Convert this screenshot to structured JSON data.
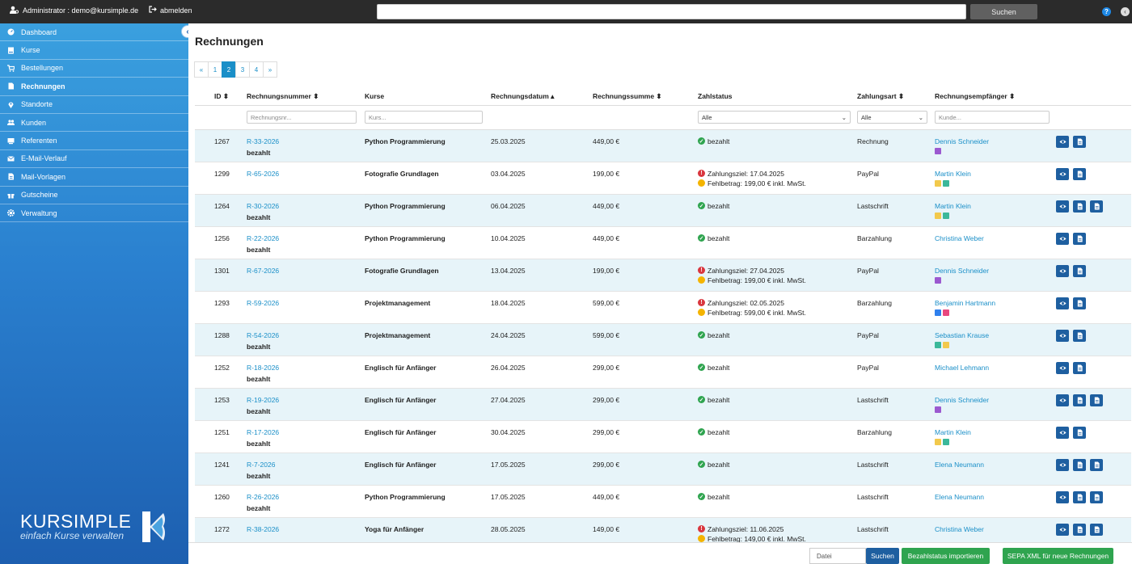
{
  "topbar": {
    "user": "Administrator : demo@kursimple.de",
    "logout": "abmelden",
    "search_button": "Suchen",
    "help": "?",
    "collapse": "‹"
  },
  "sidebar": {
    "items": [
      {
        "label": "Dashboard",
        "icon": "dashboard-icon"
      },
      {
        "label": "Kurse",
        "icon": "book-icon"
      },
      {
        "label": "Bestellungen",
        "icon": "cart-icon"
      },
      {
        "label": "Rechnungen",
        "icon": "file-icon",
        "active": true
      },
      {
        "label": "Standorte",
        "icon": "map-marker-icon"
      },
      {
        "label": "Kunden",
        "icon": "users-icon"
      },
      {
        "label": "Referenten",
        "icon": "chalkboard-icon"
      },
      {
        "label": "E-Mail-Verlauf",
        "icon": "envelope-icon"
      },
      {
        "label": "Mail-Vorlagen",
        "icon": "file-text-icon"
      },
      {
        "label": "Gutscheine",
        "icon": "gift-icon"
      },
      {
        "label": "Verwaltung",
        "icon": "gear-icon"
      }
    ],
    "toggle": "‹",
    "logo_main": "KURSIMPLE",
    "logo_sub": "einfach Kurse verwalten"
  },
  "page": {
    "title": "Rechnungen"
  },
  "pagination": [
    "«",
    "1",
    "2",
    "3",
    "4",
    "»"
  ],
  "pagination_active": 2,
  "columns": {
    "id": "ID",
    "nr": "Rechnungsnummer",
    "kurse": "Kurse",
    "datum": "Rechnungsdatum",
    "summe": "Rechnungssumme",
    "zahlstatus": "Zahlstatus",
    "zahlungsart": "Zahlungsart",
    "empfaenger": "Rechnungsempfänger"
  },
  "filters": {
    "nr_placeholder": "Rechnungsnr...",
    "kurse_placeholder": "Kurs...",
    "zahlstatus": "Alle",
    "zahlungsart": "Alle",
    "kunde_placeholder": "Kunde..."
  },
  "colors": {
    "purple": "#9b59d0",
    "yellow": "#f2c94c",
    "teal": "#3bb89a",
    "blue": "#2f80ed",
    "pink": "#e8487f"
  },
  "rows": [
    {
      "id": "1267",
      "nr": "R-33-2026",
      "paid_label": "bezahlt",
      "kurs": "Python Programmierung",
      "datum": "25.03.2025",
      "summe": "449,00 €",
      "status": [
        {
          "type": "green",
          "text": "bezahlt"
        }
      ],
      "zahlungsart": "Rechnung",
      "empfaenger": "Dennis Schneider",
      "tags": [
        "purple"
      ],
      "actions": 2
    },
    {
      "id": "1299",
      "nr": "R-65-2026",
      "paid_label": "",
      "kurs": "Fotografie Grundlagen",
      "datum": "03.04.2025",
      "summe": "199,00 €",
      "status": [
        {
          "type": "red",
          "text": "Zahlungsziel: 17.04.2025"
        },
        {
          "type": "yellow",
          "text": "Fehlbetrag: 199,00 € inkl. MwSt."
        }
      ],
      "zahlungsart": "PayPal",
      "empfaenger": "Martin Klein",
      "tags": [
        "yellow",
        "teal"
      ],
      "actions": 2
    },
    {
      "id": "1264",
      "nr": "R-30-2026",
      "paid_label": "bezahlt",
      "kurs": "Python Programmierung",
      "datum": "06.04.2025",
      "summe": "449,00 €",
      "status": [
        {
          "type": "green",
          "text": "bezahlt"
        }
      ],
      "zahlungsart": "Lastschrift",
      "empfaenger": "Martin Klein",
      "tags": [
        "yellow",
        "teal"
      ],
      "actions": 3
    },
    {
      "id": "1256",
      "nr": "R-22-2026",
      "paid_label": "bezahlt",
      "kurs": "Python Programmierung",
      "datum": "10.04.2025",
      "summe": "449,00 €",
      "status": [
        {
          "type": "green",
          "text": "bezahlt"
        }
      ],
      "zahlungsart": "Barzahlung",
      "empfaenger": "Christina Weber",
      "tags": [],
      "actions": 2
    },
    {
      "id": "1301",
      "nr": "R-67-2026",
      "paid_label": "",
      "kurs": "Fotografie Grundlagen",
      "datum": "13.04.2025",
      "summe": "199,00 €",
      "status": [
        {
          "type": "red",
          "text": "Zahlungsziel: 27.04.2025"
        },
        {
          "type": "yellow",
          "text": "Fehlbetrag: 199,00 € inkl. MwSt."
        }
      ],
      "zahlungsart": "PayPal",
      "empfaenger": "Dennis Schneider",
      "tags": [
        "purple"
      ],
      "actions": 2
    },
    {
      "id": "1293",
      "nr": "R-59-2026",
      "paid_label": "",
      "kurs": "Projektmanagement",
      "datum": "18.04.2025",
      "summe": "599,00 €",
      "status": [
        {
          "type": "red",
          "text": "Zahlungsziel: 02.05.2025"
        },
        {
          "type": "yellow",
          "text": "Fehlbetrag: 599,00 € inkl. MwSt."
        }
      ],
      "zahlungsart": "Barzahlung",
      "empfaenger": "Benjamin Hartmann",
      "tags": [
        "blue",
        "pink"
      ],
      "actions": 2
    },
    {
      "id": "1288",
      "nr": "R-54-2026",
      "paid_label": "bezahlt",
      "kurs": "Projektmanagement",
      "datum": "24.04.2025",
      "summe": "599,00 €",
      "status": [
        {
          "type": "green",
          "text": "bezahlt"
        }
      ],
      "zahlungsart": "PayPal",
      "empfaenger": "Sebastian Krause",
      "tags": [
        "teal",
        "yellow"
      ],
      "actions": 2
    },
    {
      "id": "1252",
      "nr": "R-18-2026",
      "paid_label": "bezahlt",
      "kurs": "Englisch für Anfänger",
      "datum": "26.04.2025",
      "summe": "299,00 €",
      "status": [
        {
          "type": "green",
          "text": "bezahlt"
        }
      ],
      "zahlungsart": "PayPal",
      "empfaenger": "Michael Lehmann",
      "tags": [],
      "actions": 2
    },
    {
      "id": "1253",
      "nr": "R-19-2026",
      "paid_label": "bezahlt",
      "kurs": "Englisch für Anfänger",
      "datum": "27.04.2025",
      "summe": "299,00 €",
      "status": [
        {
          "type": "green",
          "text": "bezahlt"
        }
      ],
      "zahlungsart": "Lastschrift",
      "empfaenger": "Dennis Schneider",
      "tags": [
        "purple"
      ],
      "actions": 3
    },
    {
      "id": "1251",
      "nr": "R-17-2026",
      "paid_label": "bezahlt",
      "kurs": "Englisch für Anfänger",
      "datum": "30.04.2025",
      "summe": "299,00 €",
      "status": [
        {
          "type": "green",
          "text": "bezahlt"
        }
      ],
      "zahlungsart": "Barzahlung",
      "empfaenger": "Martin Klein",
      "tags": [
        "yellow",
        "teal"
      ],
      "actions": 2
    },
    {
      "id": "1241",
      "nr": "R-7-2026",
      "paid_label": "bezahlt",
      "kurs": "Englisch für Anfänger",
      "datum": "17.05.2025",
      "summe": "299,00 €",
      "status": [
        {
          "type": "green",
          "text": "bezahlt"
        }
      ],
      "zahlungsart": "Lastschrift",
      "empfaenger": "Elena Neumann",
      "tags": [],
      "actions": 3
    },
    {
      "id": "1260",
      "nr": "R-26-2026",
      "paid_label": "bezahlt",
      "kurs": "Python Programmierung",
      "datum": "17.05.2025",
      "summe": "449,00 €",
      "status": [
        {
          "type": "green",
          "text": "bezahlt"
        }
      ],
      "zahlungsart": "Lastschrift",
      "empfaenger": "Elena Neumann",
      "tags": [],
      "actions": 3
    },
    {
      "id": "1272",
      "nr": "R-38-2026",
      "paid_label": "",
      "kurs": "Yoga für Anfänger",
      "datum": "28.05.2025",
      "summe": "149,00 €",
      "status": [
        {
          "type": "red",
          "text": "Zahlungsziel: 11.06.2025"
        },
        {
          "type": "yellow",
          "text": "Fehlbetrag: 149,00 € inkl. MwSt."
        }
      ],
      "zahlungsart": "Lastschrift",
      "empfaenger": "Christina Weber",
      "tags": [],
      "actions": 3
    }
  ],
  "bottombar": {
    "file_label": "Datei",
    "search": "Suchen",
    "import": "Bezahlstatus importieren",
    "sepa": "SEPA XML für neue Rechnungen"
  }
}
